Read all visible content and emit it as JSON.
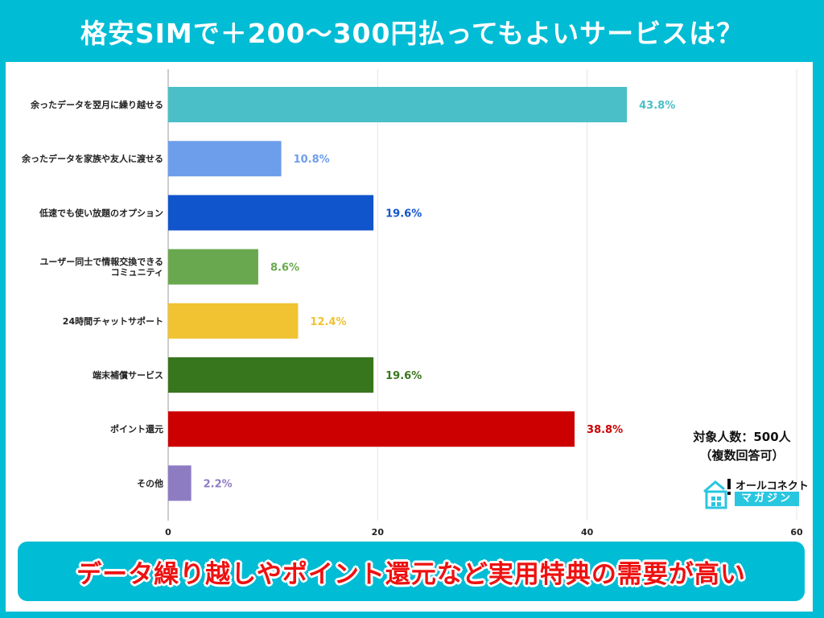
{
  "title": "格安SIMで＋200〜300円払ってもよいサービスは？",
  "note": {
    "line1": "対象人数：500人",
    "line2": "（複数回答可）"
  },
  "logo": {
    "line1": "オールコネクト",
    "line2": "マガジン",
    "icon": "house-icon"
  },
  "banner": "データ繰り越しやポイント還元など実用特典の需要が高い",
  "chart_data": {
    "type": "bar",
    "orientation": "horizontal",
    "categories": [
      [
        "余ったデータを翌月に繰り越せる"
      ],
      [
        "余ったデータを家族や友人に渡せる"
      ],
      [
        "低速でも使い放題のオプション"
      ],
      [
        "ユーザー同士で情報交換できる",
        "コミュニティ"
      ],
      [
        "24時間チャットサポート"
      ],
      [
        "端末補償サービス"
      ],
      [
        "ポイント還元"
      ],
      [
        "その他"
      ]
    ],
    "values": [
      43.8,
      10.8,
      19.6,
      8.6,
      12.4,
      19.6,
      38.8,
      2.2
    ],
    "data_labels": [
      "43.8%",
      "10.8%",
      "19.6%",
      "8.6%",
      "12.4%",
      "19.6%",
      "38.8%",
      "2.2%"
    ],
    "colors": [
      "#4bbfc8",
      "#6d9eeb",
      "#1155cc",
      "#6aa84f",
      "#f1c232",
      "#38761d",
      "#cc0000",
      "#8e7cc3"
    ],
    "xlim": [
      0,
      60
    ],
    "xticks": [
      "0",
      "20",
      "40",
      "60"
    ],
    "grid": true
  }
}
